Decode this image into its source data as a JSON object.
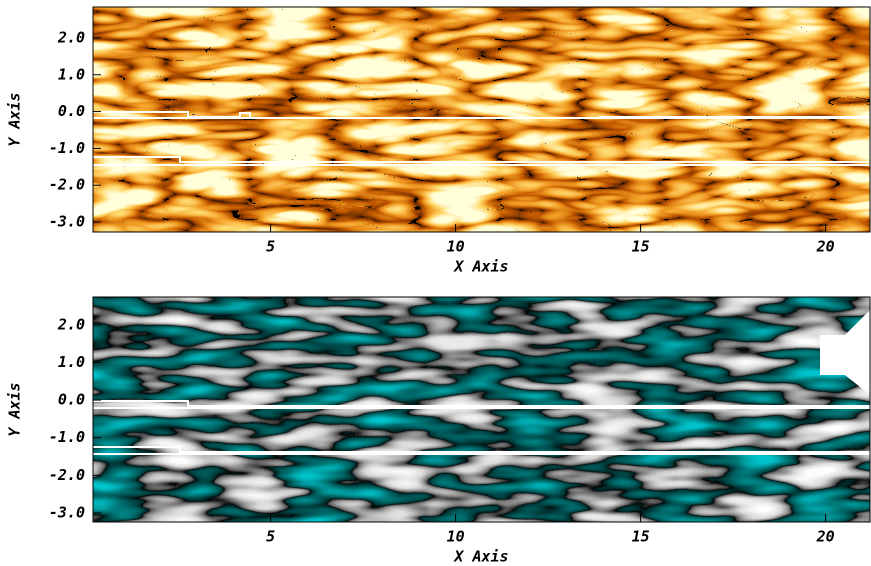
{
  "chart_data": [
    {
      "type": "heatmap",
      "xlabel": "X Axis",
      "ylabel": "Y Axis",
      "xlim": [
        0.2,
        21.2
      ],
      "ylim": [
        -3.27,
        2.84
      ],
      "xticks": [
        5,
        10,
        15,
        20
      ],
      "yticks": [
        {
          "value": 2,
          "label": "2.0"
        },
        {
          "value": 1,
          "label": "1.0"
        },
        {
          "value": 0,
          "label": "0.0"
        },
        {
          "value": -1,
          "label": "-1.0"
        },
        {
          "value": -2,
          "label": "-2.0"
        },
        {
          "value": -3,
          "label": "-3.0"
        }
      ]
    },
    {
      "type": "heatmap",
      "xlabel": "X Axis",
      "ylabel": "Y Axis",
      "xlim": [
        0.2,
        21.2
      ],
      "ylim": [
        -3.24,
        2.74
      ],
      "xticks": [
        5,
        10,
        15,
        20
      ],
      "yticks": [
        {
          "value": 2,
          "label": "2.0"
        },
        {
          "value": 1,
          "label": "1.0"
        },
        {
          "value": 0,
          "label": "0.0"
        },
        {
          "value": -1,
          "label": "-1.0"
        },
        {
          "value": -2,
          "label": "-2.0"
        },
        {
          "value": -3,
          "label": "-3.0"
        }
      ]
    }
  ]
}
